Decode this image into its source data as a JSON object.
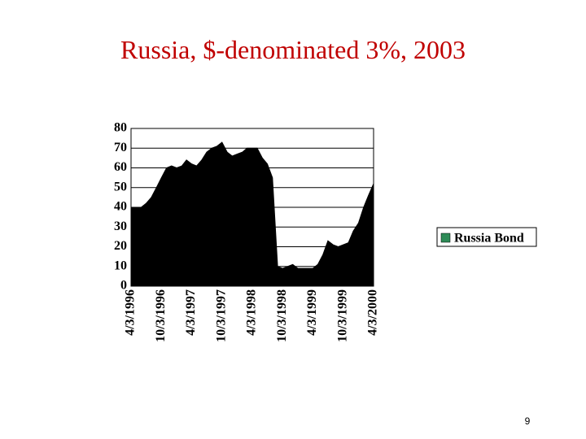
{
  "chart_data": {
    "type": "area",
    "title": "Russia, $-denominated 3%, 2003",
    "x": [
      "4/3/1996",
      "5/3/1996",
      "6/3/1996",
      "7/3/1996",
      "8/3/1996",
      "9/3/1996",
      "10/3/1996",
      "11/3/1996",
      "12/3/1996",
      "1/3/1997",
      "2/3/1997",
      "3/3/1997",
      "4/3/1997",
      "5/3/1997",
      "6/3/1997",
      "7/3/1997",
      "8/3/1997",
      "9/3/1997",
      "10/3/1997",
      "11/3/1997",
      "12/3/1997",
      "1/3/1998",
      "2/3/1998",
      "3/3/1998",
      "4/3/1998",
      "5/3/1998",
      "6/3/1998",
      "7/3/1998",
      "8/3/1998",
      "9/3/1998",
      "10/3/1998",
      "11/3/1998",
      "12/3/1998",
      "1/3/1999",
      "2/3/1999",
      "3/3/1999",
      "4/3/1999",
      "5/3/1999",
      "6/3/1999",
      "7/3/1999",
      "8/3/1999",
      "9/3/1999",
      "10/3/1999",
      "11/3/1999",
      "12/3/1999",
      "1/3/2000",
      "2/3/2000",
      "3/3/2000",
      "4/3/2000"
    ],
    "series": [
      {
        "name": "Russia Bond",
        "color": "#000000",
        "legend_color": "#2e8b57",
        "values": [
          40,
          40,
          40,
          42,
          45,
          50,
          55,
          60,
          61,
          60,
          61,
          64,
          62,
          61,
          64,
          68,
          70,
          71,
          73,
          68,
          66,
          67,
          68,
          70,
          70,
          70,
          65,
          62,
          55,
          10,
          9,
          10,
          11,
          9,
          9,
          9,
          9,
          11,
          16,
          23,
          21,
          20,
          21,
          22,
          28,
          32,
          40,
          46,
          52
        ]
      }
    ],
    "xlim": [
      "4/3/1996",
      "4/3/2000"
    ],
    "xticks": [
      "4/3/1996",
      "10/3/1996",
      "4/3/1997",
      "10/3/1997",
      "4/3/1998",
      "10/3/1998",
      "4/3/1999",
      "10/3/1999",
      "4/3/2000"
    ],
    "ylim": [
      0,
      80
    ],
    "yticks": [
      0,
      10,
      20,
      30,
      40,
      50,
      60,
      70,
      80
    ],
    "grid": true,
    "legend": "right",
    "page_number": "9"
  }
}
